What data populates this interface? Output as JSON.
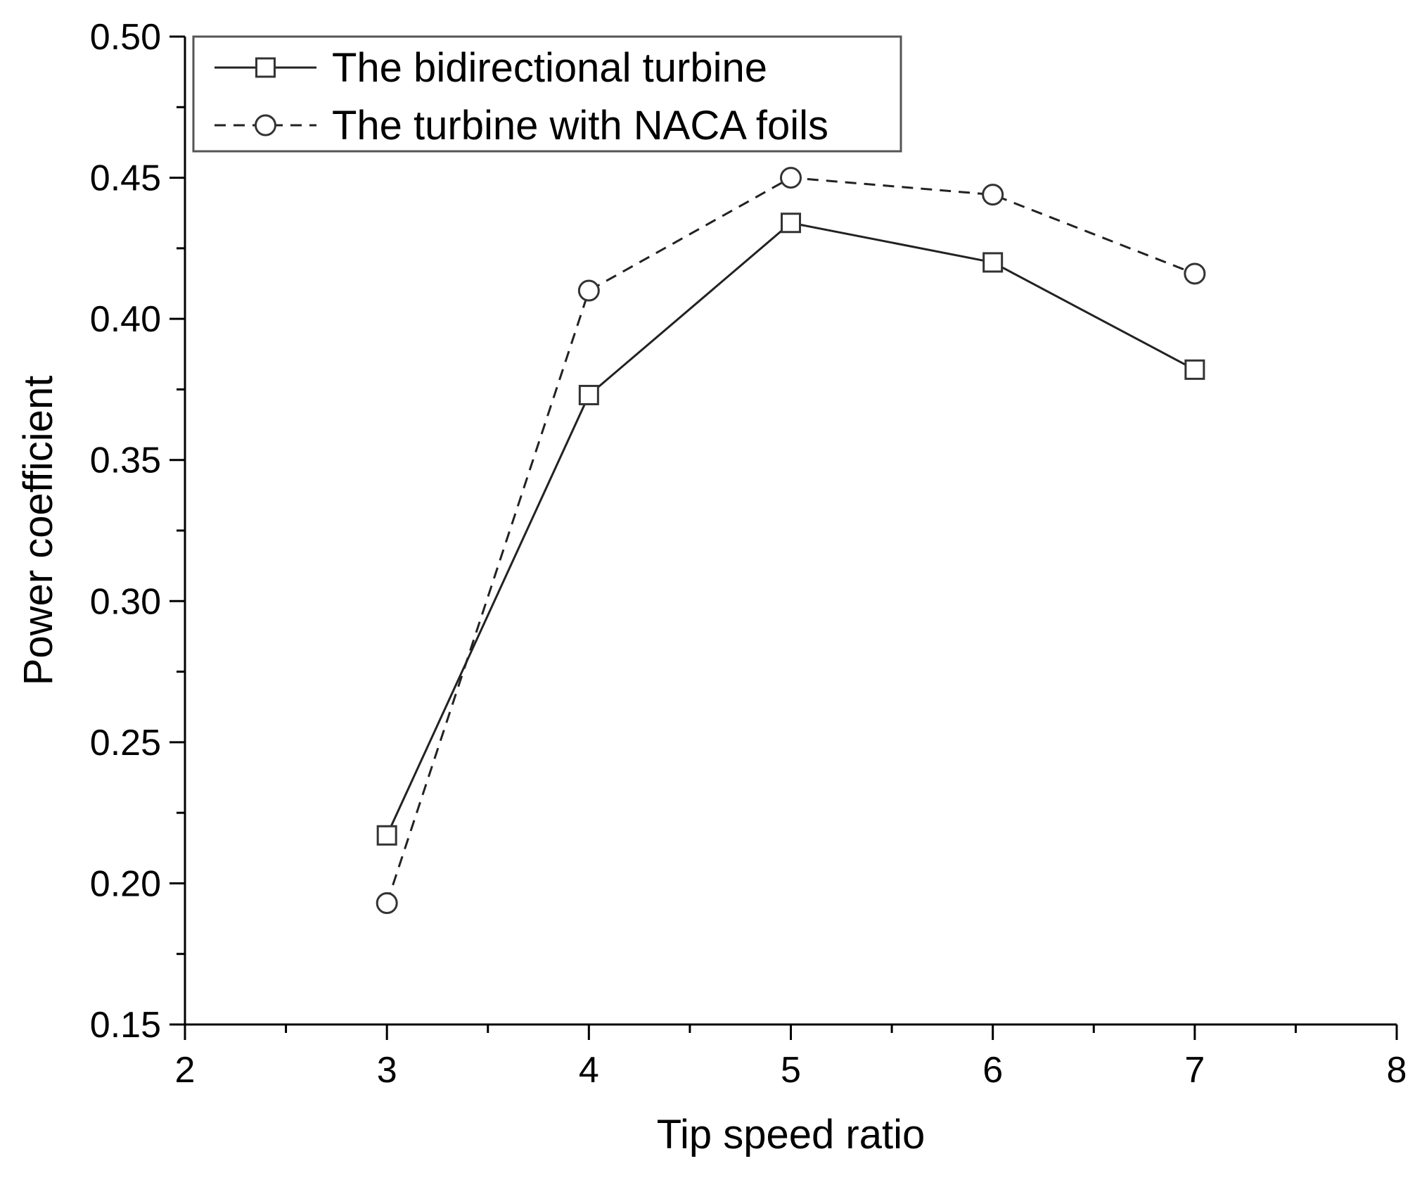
{
  "chart_data": {
    "type": "line",
    "xlabel": "Tip speed ratio",
    "ylabel": "Power coefficient",
    "xlim": [
      2,
      8
    ],
    "ylim": [
      0.15,
      0.5
    ],
    "x_ticks": [
      "2",
      "3",
      "4",
      "5",
      "6",
      "7",
      "8"
    ],
    "y_ticks": [
      "0.15",
      "0.20",
      "0.25",
      "0.30",
      "0.35",
      "0.40",
      "0.45",
      "0.50"
    ],
    "grid": false,
    "legend_position": "top-left",
    "series": [
      {
        "name": "The bidirectional turbine",
        "marker": "square",
        "line_style": "solid",
        "x": [
          3,
          4,
          5,
          6,
          7
        ],
        "values": [
          0.217,
          0.373,
          0.434,
          0.42,
          0.382
        ]
      },
      {
        "name": "The turbine with NACA foils",
        "marker": "circle",
        "line_style": "dashed",
        "x": [
          3,
          4,
          5,
          6,
          7
        ],
        "values": [
          0.193,
          0.41,
          0.45,
          0.444,
          0.416
        ]
      }
    ]
  }
}
